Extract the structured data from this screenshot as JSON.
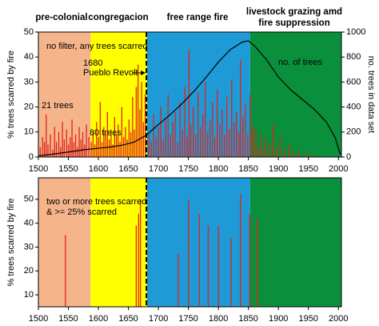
{
  "chart_data": [
    {
      "type": "bar",
      "ylabel": "% trees scarred by fire",
      "y2label": "no. trees in data set",
      "xlim": [
        1500,
        2005
      ],
      "xticks": [
        1500,
        1550,
        1600,
        1650,
        1700,
        1750,
        1800,
        1850,
        1900,
        1950,
        2000
      ],
      "ylim": [
        0,
        50
      ],
      "yticks": [
        0,
        10,
        20,
        30,
        40,
        50
      ],
      "y2lim": [
        0,
        1000
      ],
      "y2ticks": [
        0,
        200,
        400,
        600,
        800,
        1000
      ],
      "zones": [
        {
          "label": [
            "pre-colonial"
          ],
          "start": 1500,
          "end": 1587,
          "color": "#f5b48a"
        },
        {
          "label": [
            "congregacion"
          ],
          "start": 1587,
          "end": 1681,
          "color": "#ffff00"
        },
        {
          "label": [
            "free range fire"
          ],
          "start": 1681,
          "end": 1853,
          "color": "#1e9ad6"
        },
        {
          "label": [
            "livestock grazing amd",
            "fire suppression"
          ],
          "start": 1853,
          "end": 2005,
          "color": "#0a8f3c"
        }
      ],
      "event": {
        "year": 1680,
        "label": "Pueblo Revolt"
      },
      "annotations": [
        "no filter, any trees scarred",
        "21 trees",
        "80 trees"
      ],
      "series": [
        {
          "color": "#e0241b",
          "x": [
            1503,
            1507,
            1510,
            1513,
            1516,
            1520,
            1524,
            1527,
            1530,
            1534,
            1537,
            1540,
            1543,
            1547,
            1550,
            1553,
            1556,
            1559,
            1562,
            1565,
            1568,
            1571,
            1574,
            1577,
            1580,
            1584,
            1588,
            1591,
            1594,
            1597,
            1600,
            1603,
            1606,
            1609,
            1612,
            1615,
            1618,
            1621,
            1624,
            1627,
            1630,
            1633,
            1636,
            1639,
            1642,
            1645,
            1648,
            1651,
            1654,
            1657,
            1660,
            1663,
            1666,
            1669,
            1672,
            1675,
            1678,
            1684,
            1688,
            1692,
            1696,
            1700,
            1704,
            1708,
            1712,
            1716,
            1720,
            1724,
            1728,
            1732,
            1736,
            1740,
            1744,
            1748,
            1751,
            1754,
            1758,
            1762,
            1766,
            1770,
            1774,
            1778,
            1782,
            1786,
            1790,
            1794,
            1798,
            1802,
            1806,
            1810,
            1814,
            1818,
            1822,
            1826,
            1830,
            1834,
            1837,
            1841,
            1845,
            1849,
            1853,
            1857,
            1862,
            1866,
            1870,
            1874,
            1879,
            1885,
            1891,
            1897,
            1903,
            1910,
            1918,
            1925,
            1935,
            1948,
            1960
          ],
          "values": [
            4,
            8,
            6,
            17,
            5,
            9,
            3,
            12,
            6,
            10,
            4,
            14,
            7,
            11,
            5,
            8,
            15,
            6,
            9,
            4,
            12,
            7,
            10,
            5,
            13,
            8,
            6,
            10,
            5,
            14,
            8,
            22,
            6,
            12,
            9,
            18,
            7,
            11,
            5,
            16,
            9,
            13,
            6,
            20,
            8,
            12,
            7,
            15,
            10,
            24,
            11,
            28,
            37,
            19,
            30,
            14,
            25,
            9,
            6,
            17,
            8,
            12,
            20,
            7,
            15,
            25,
            9,
            14,
            18,
            6,
            22,
            11,
            28,
            8,
            43,
            13,
            20,
            9,
            26,
            12,
            17,
            30,
            10,
            15,
            22,
            8,
            27,
            13,
            19,
            9,
            24,
            11,
            31,
            14,
            18,
            10,
            39,
            16,
            21,
            9,
            25,
            12,
            11,
            4,
            9,
            3,
            7,
            5,
            13,
            4,
            8,
            3,
            5,
            2,
            3,
            2,
            1
          ]
        }
      ],
      "line": {
        "name": "no. of trees",
        "color": "#000000",
        "axis": "y2",
        "x": [
          1500,
          1520,
          1550,
          1580,
          1600,
          1620,
          1640,
          1660,
          1680,
          1700,
          1720,
          1740,
          1760,
          1780,
          1800,
          1820,
          1840,
          1850,
          1860,
          1880,
          1900,
          1920,
          1940,
          1960,
          1980,
          1995,
          2003
        ],
        "values": [
          10,
          20,
          40,
          60,
          70,
          80,
          95,
          120,
          175,
          260,
          340,
          430,
          530,
          640,
          760,
          860,
          920,
          930,
          890,
          780,
          640,
          540,
          460,
          380,
          280,
          150,
          20
        ]
      }
    },
    {
      "type": "bar",
      "ylabel": "% trees scarred by fire",
      "xlim": [
        1500,
        2005
      ],
      "xticks": [
        1500,
        1550,
        1600,
        1650,
        1700,
        1750,
        1800,
        1850,
        1900,
        1950,
        2000
      ],
      "ylim": [
        5,
        59
      ],
      "yticks": [
        10,
        20,
        30,
        40,
        50
      ],
      "annotations": [
        "two or more trees scarred",
        "& >= 25% scarred"
      ],
      "series": [
        {
          "color": "#e0241b",
          "x": [
            1545,
            1663,
            1667,
            1670,
            1733,
            1750,
            1768,
            1783,
            1800,
            1821,
            1837,
            1852,
            1865
          ],
          "values": [
            35,
            39,
            44,
            50,
            27,
            50,
            44,
            39,
            39,
            34,
            52,
            44,
            42
          ]
        }
      ]
    }
  ]
}
